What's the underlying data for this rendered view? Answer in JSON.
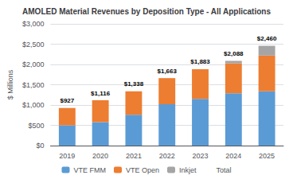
{
  "chart_data": {
    "type": "bar",
    "title": "AMOLED Material Revenues by Deposition Type - All Applications",
    "ylabel": "$ Millions",
    "categories": [
      "2019",
      "2020",
      "2021",
      "2022",
      "2023",
      "2024",
      "2025"
    ],
    "stacked": true,
    "series": [
      {
        "name": "VTE FMM",
        "color": "#5B9BD5",
        "values": [
          500,
          580,
          760,
          1020,
          1150,
          1290,
          1340
        ]
      },
      {
        "name": "VTE Open",
        "color": "#ED7D31",
        "values": [
          427,
          536,
          578,
          643,
          733,
          738,
          880
        ]
      },
      {
        "name": "Inkjet",
        "color": "#A5A5A5",
        "values": [
          0,
          0,
          0,
          0,
          0,
          60,
          240
        ]
      },
      {
        "name": "Total",
        "type": "line",
        "marker": "none",
        "line_style": "none",
        "data_labels": true,
        "values": [
          927,
          1116,
          1338,
          1663,
          1883,
          2088,
          2460
        ],
        "value_labels": [
          "$927",
          "$1,116",
          "$1,338",
          "$1,663",
          "$1,883",
          "$2,088",
          "$2,460"
        ]
      }
    ],
    "ylim": [
      0,
      3000
    ],
    "yticks": [
      {
        "value": 0,
        "label": "$0"
      },
      {
        "value": 500,
        "label": "$500"
      },
      {
        "value": 1000,
        "label": "$1,000"
      },
      {
        "value": 1500,
        "label": "$1,500"
      },
      {
        "value": 2000,
        "label": "$2,000"
      },
      {
        "value": 2500,
        "label": "$2,500"
      },
      {
        "value": 3000,
        "label": "$3,000"
      }
    ],
    "grid": true,
    "legend": "bottom"
  }
}
